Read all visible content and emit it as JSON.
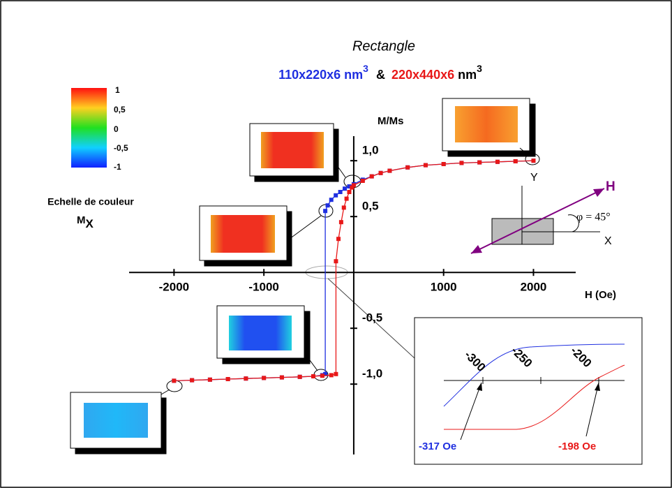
{
  "chart_data": {
    "type": "line",
    "title": "Rectangle",
    "subtitle": {
      "blue_part": "110x220x6 nm",
      "blue_exp": "3",
      "amp": "&",
      "red_part": "220x440x6",
      "red_unit": "nm",
      "red_exp": "3"
    },
    "x_label": "H (Oe)",
    "y_label": "M/Ms",
    "colorbar": {
      "title": "Echelle de couleur",
      "symbol": "M",
      "symbol_sub": "X",
      "labels": [
        "1",
        "0,5",
        "0",
        "-0,5",
        "-1"
      ]
    },
    "diagram": {
      "y_axis": "Y",
      "x_axis": "X",
      "field": "H",
      "angle": "φ = 45°"
    },
    "inset": {
      "ticks": [
        "-300",
        "-250",
        "-200"
      ],
      "blue_note": "-317 Oe",
      "red_note": "-198 Oe"
    },
    "xlim": [
      -2500,
      2470
    ],
    "ylim": [
      -1.63,
      1.22
    ],
    "xticks": [
      -2000,
      -1000,
      1000,
      2000
    ],
    "yticks": [
      {
        "value": 1,
        "label": "1,0"
      },
      {
        "value": 0.5,
        "label": "0,5"
      },
      {
        "value": -0.5,
        "label": "-0,5"
      },
      {
        "value": -1,
        "label": "-1,0"
      }
    ],
    "series": [
      {
        "color": "#1f2fe0",
        "x": [
          -2000,
          -1800,
          -1600,
          -1400,
          -1200,
          -1000,
          -800,
          -600,
          -450,
          -350,
          -317,
          -317,
          -290,
          -250,
          -200,
          -150,
          -100,
          -50,
          0,
          100,
          200,
          300,
          400,
          600,
          800,
          1000,
          1200,
          1400,
          1600,
          1800,
          2000
        ],
        "values": [
          -0.97,
          -0.965,
          -0.96,
          -0.955,
          -0.95,
          -0.945,
          -0.94,
          -0.935,
          -0.93,
          -0.92,
          -0.91,
          0.55,
          0.6,
          0.65,
          0.69,
          0.72,
          0.75,
          0.77,
          0.79,
          0.83,
          0.86,
          0.89,
          0.91,
          0.94,
          0.96,
          0.97,
          0.98,
          0.985,
          0.99,
          0.995,
          1.0
        ]
      },
      {
        "color": "#e81818",
        "x": [
          -2000,
          -1800,
          -1600,
          -1400,
          -1200,
          -1000,
          -800,
          -600,
          -450,
          -350,
          -250,
          -198,
          -198,
          -170,
          -140,
          -110,
          -80,
          -50,
          -20,
          0,
          100,
          200,
          300,
          400,
          600,
          800,
          1000,
          1200,
          1400,
          1600,
          1800,
          2000
        ],
        "values": [
          -0.97,
          -0.965,
          -0.96,
          -0.955,
          -0.95,
          -0.945,
          -0.94,
          -0.935,
          -0.93,
          -0.925,
          -0.92,
          -0.91,
          0.1,
          0.3,
          0.45,
          0.58,
          0.66,
          0.72,
          0.76,
          0.78,
          0.82,
          0.86,
          0.89,
          0.91,
          0.94,
          0.96,
          0.97,
          0.98,
          0.985,
          0.99,
          0.995,
          1.0
        ]
      }
    ]
  }
}
